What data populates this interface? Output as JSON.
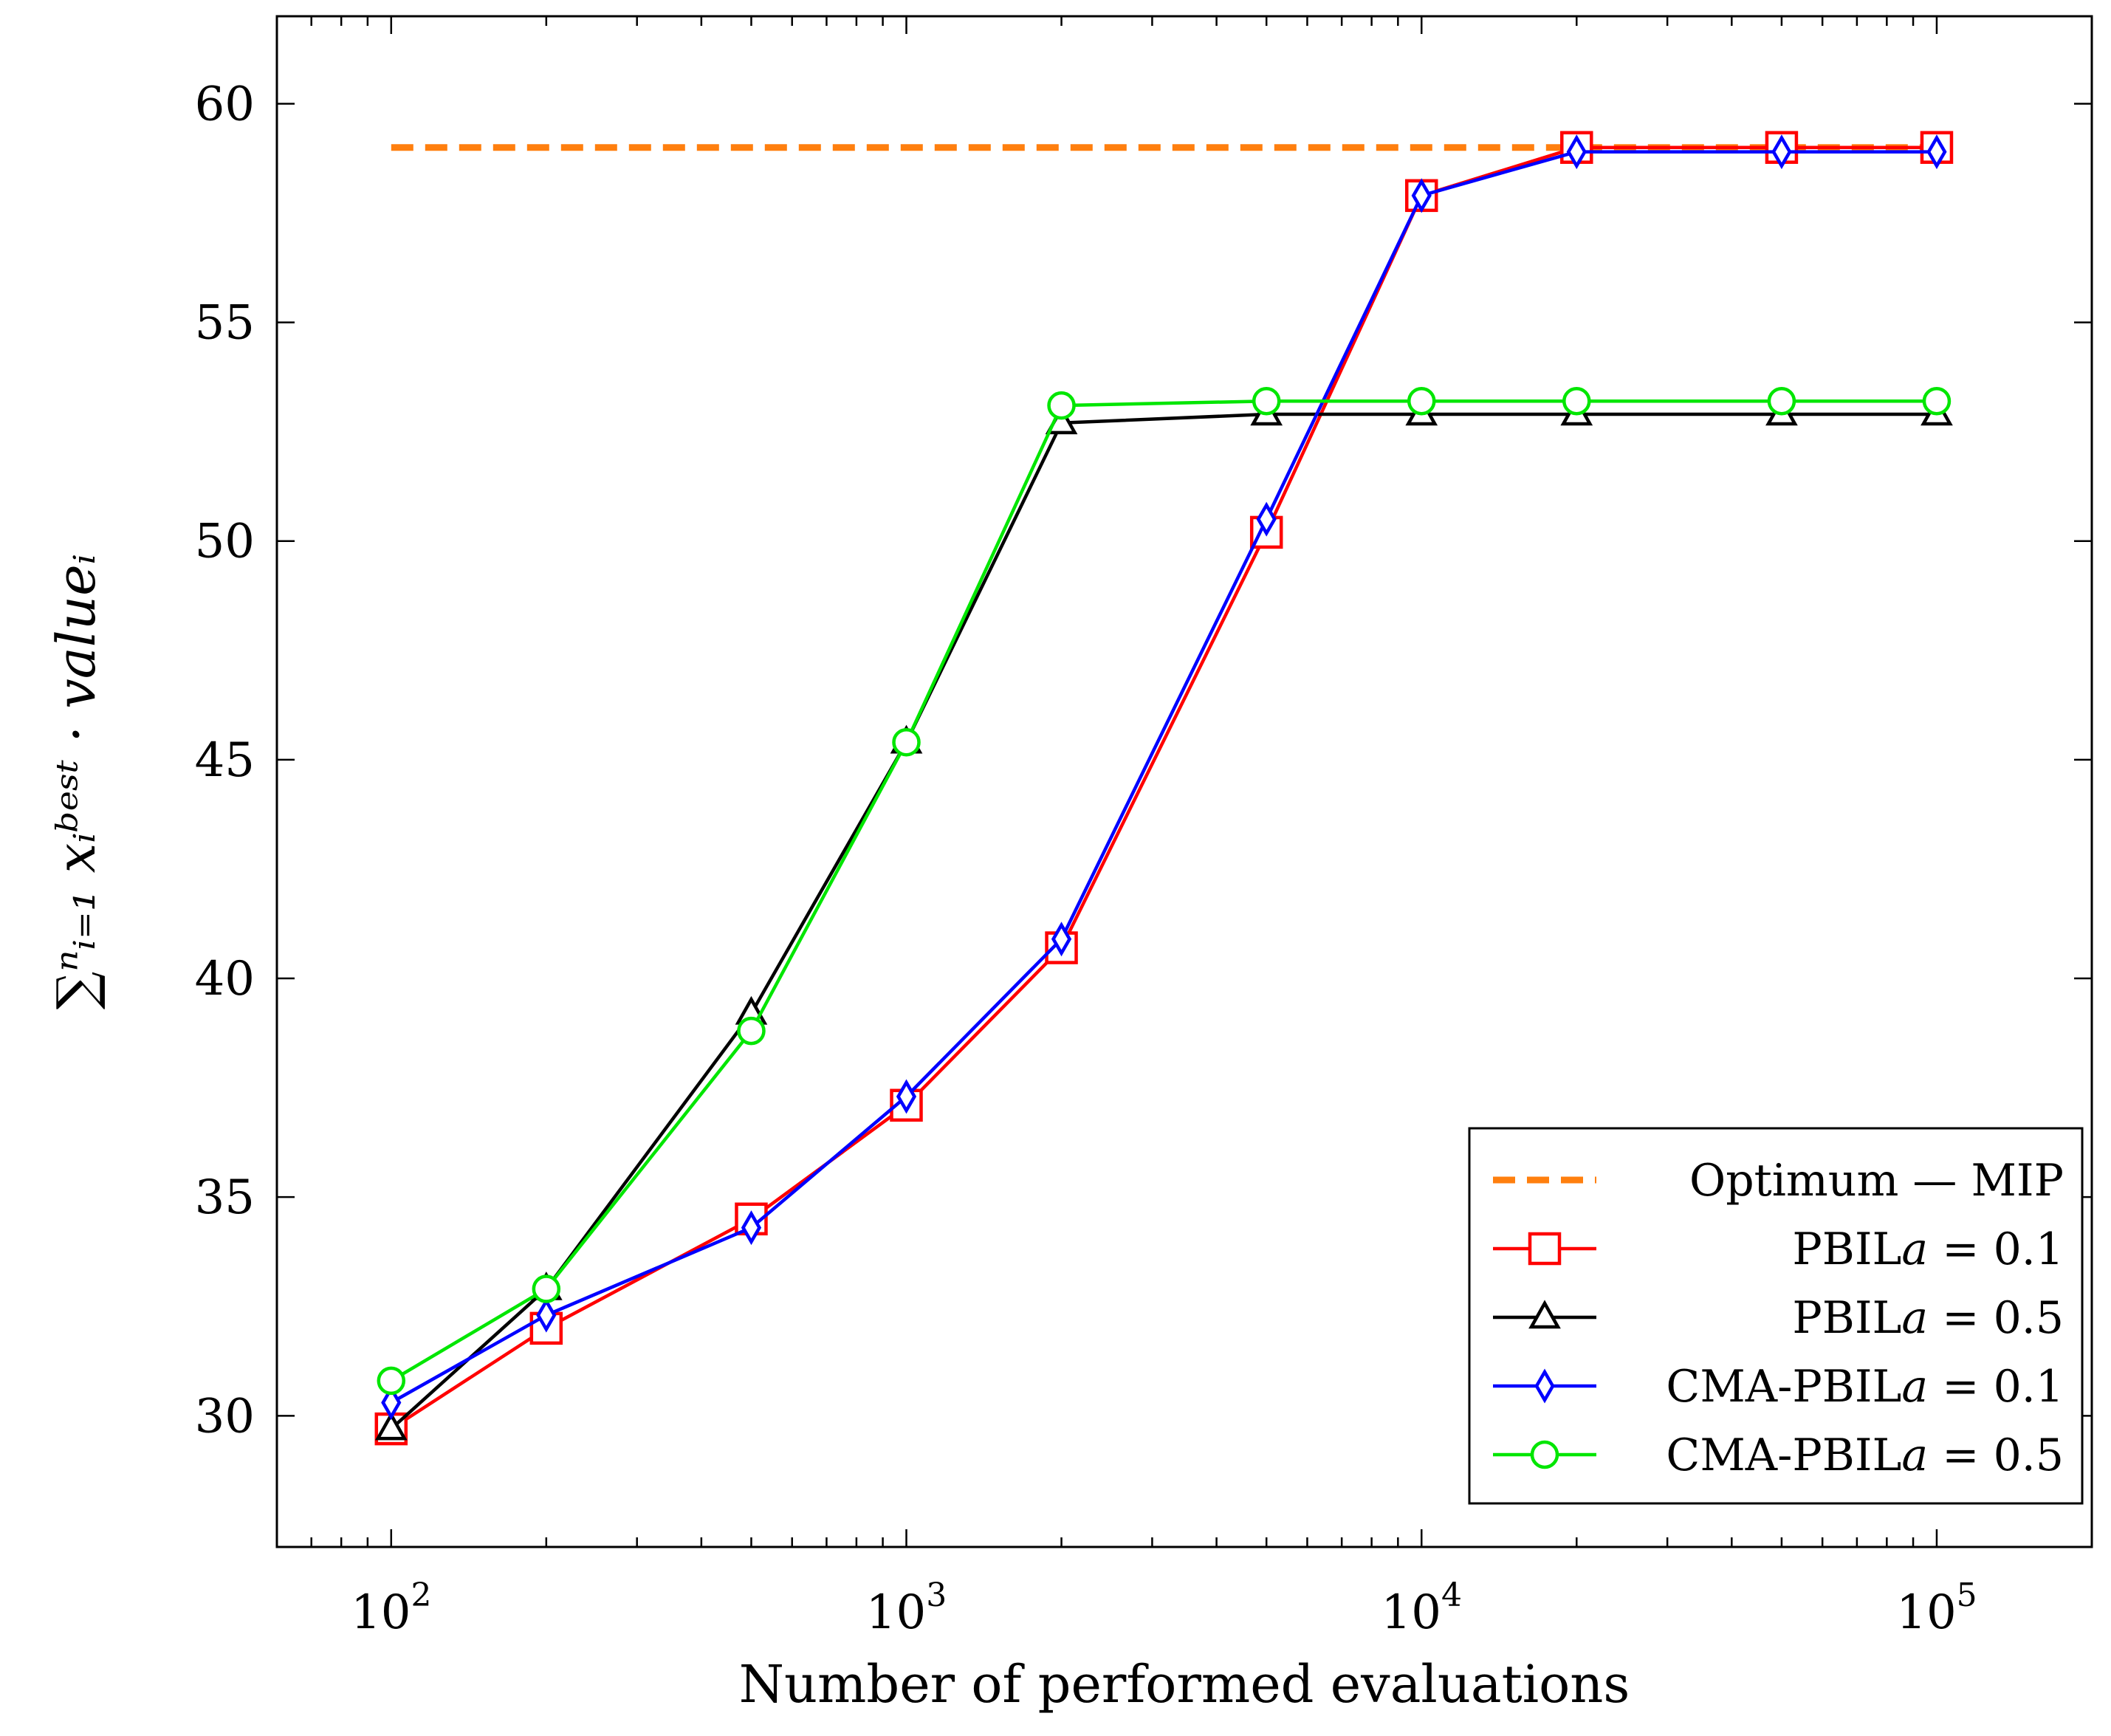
{
  "chart_data": {
    "type": "line",
    "title": "",
    "xlabel": "Number of performed evaluations",
    "ylabel": "∑ⁿᵢ₌₁ xᵢᵇᵉˢᵗ · valueᵢ",
    "xscale": "log",
    "xlim": [
      60,
      200000
    ],
    "ylim": [
      27,
      62
    ],
    "x_ticks": [
      {
        "value": 100,
        "base": "10",
        "exp": "2"
      },
      {
        "value": 1000,
        "base": "10",
        "exp": "3"
      },
      {
        "value": 10000,
        "base": "10",
        "exp": "4"
      },
      {
        "value": 100000,
        "base": "10",
        "exp": "5"
      }
    ],
    "y_ticks": [
      30,
      35,
      40,
      45,
      50,
      55,
      60
    ],
    "legend_position": "bottom-right",
    "x": [
      100,
      200,
      500,
      1000,
      2000,
      5000,
      10000,
      20000,
      50000,
      100000
    ],
    "series": [
      {
        "name": "Optimum — MIP",
        "color": "#ff7f0e",
        "style": "dashed",
        "marker": "none",
        "x": [
          100,
          100000
        ],
        "values": [
          59,
          59
        ]
      },
      {
        "name": "PBIL",
        "param": "a = 0.1",
        "color": "#ff0000",
        "style": "solid",
        "marker": "square",
        "values": [
          29.7,
          32.0,
          34.5,
          37.1,
          40.7,
          50.2,
          57.9,
          59.0,
          59.0,
          59.0
        ]
      },
      {
        "name": "PBIL",
        "param": "a = 0.5",
        "color": "#000000",
        "style": "solid",
        "marker": "triangle",
        "values": [
          29.7,
          32.9,
          39.2,
          45.4,
          52.7,
          52.9,
          52.9,
          52.9,
          52.9,
          52.9
        ]
      },
      {
        "name": "CMA-PBIL",
        "param": "a = 0.1",
        "color": "#0000ff",
        "style": "solid",
        "marker": "diamond",
        "values": [
          30.3,
          32.3,
          34.3,
          37.3,
          40.9,
          50.5,
          57.9,
          58.9,
          58.9,
          58.9
        ]
      },
      {
        "name": "CMA-PBIL",
        "param": "a = 0.5",
        "color": "#00e600",
        "style": "solid",
        "marker": "circle",
        "values": [
          30.8,
          32.9,
          38.8,
          45.4,
          53.1,
          53.2,
          53.2,
          53.2,
          53.2,
          53.2
        ]
      }
    ]
  }
}
